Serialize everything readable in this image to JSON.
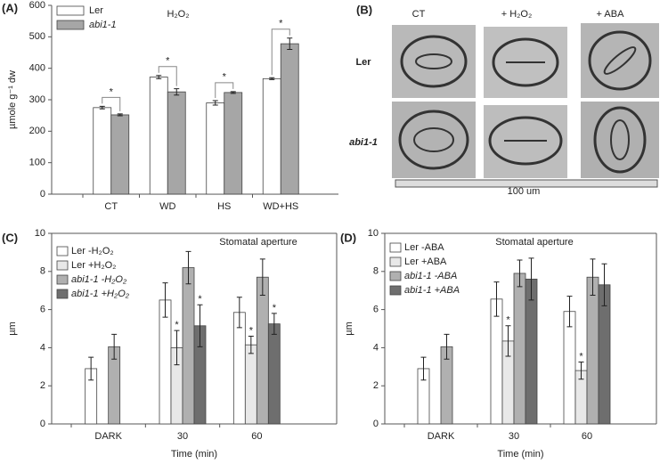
{
  "chart_data": [
    {
      "type": "bar",
      "panel_label": "(A)",
      "title": "H₂O₂",
      "y_label": "µmole g⁻¹ dw",
      "categories": [
        "CT",
        "WD",
        "HS",
        "WD+HS"
      ],
      "series": [
        {
          "name": "Ler",
          "color": "#ffffff",
          "values": [
            275,
            372,
            290,
            367
          ],
          "errors": [
            4,
            5,
            7,
            3
          ]
        },
        {
          "name": "abi1-1",
          "color": "#a6a6a6",
          "values": [
            252,
            325,
            323,
            478
          ],
          "errors": [
            3,
            10,
            3,
            18
          ],
          "significance": [
            "*",
            "*",
            "*",
            "*"
          ]
        }
      ],
      "ylim": [
        0,
        600
      ],
      "yticks": [
        0,
        100,
        200,
        300,
        400,
        500,
        600
      ],
      "legend": "upper left"
    },
    {
      "type": "bar",
      "panel_label": "(C)",
      "title": "Stomatal aperture",
      "x_label": "Time (min)",
      "y_label": "µm",
      "categories": [
        "DARK",
        "30",
        "60"
      ],
      "series": [
        {
          "name": "Ler -H₂O₂",
          "color": "#ffffff",
          "values": [
            2.9,
            6.5,
            5.85
          ],
          "errors": [
            0.6,
            0.9,
            0.8
          ]
        },
        {
          "name": "Ler +H₂O₂",
          "color": "#e8e8e8",
          "values": [
            null,
            4.0,
            4.15
          ],
          "errors": [
            null,
            0.9,
            0.45
          ],
          "significance": [
            null,
            "*",
            "*"
          ]
        },
        {
          "name": "abi1-1 -H₂O₂",
          "color": "#b0b0b0",
          "values": [
            4.05,
            8.2,
            7.7
          ],
          "errors": [
            0.65,
            0.85,
            0.95
          ]
        },
        {
          "name": "abi1-1 +H₂O₂",
          "color": "#6e6e6e",
          "values": [
            null,
            5.15,
            5.25
          ],
          "errors": [
            null,
            1.1,
            0.55
          ],
          "significance": [
            null,
            "*",
            "*"
          ]
        }
      ],
      "ylim": [
        0,
        10
      ],
      "yticks": [
        0,
        2,
        4,
        6,
        8,
        10
      ],
      "legend": "upper left"
    },
    {
      "type": "bar",
      "panel_label": "(D)",
      "title": "Stomatal aperture",
      "x_label": "Time (min)",
      "y_label": "µm",
      "categories": [
        "DARK",
        "30",
        "60"
      ],
      "series": [
        {
          "name": "Ler -ABA",
          "color": "#ffffff",
          "values": [
            2.9,
            6.55,
            5.9
          ],
          "errors": [
            0.6,
            0.9,
            0.8
          ]
        },
        {
          "name": "Ler +ABA",
          "color": "#e8e8e8",
          "values": [
            null,
            4.35,
            2.8
          ],
          "errors": [
            null,
            0.8,
            0.45
          ],
          "significance": [
            null,
            "*",
            "*"
          ]
        },
        {
          "name": "abi1-1 -ABA",
          "color": "#b0b0b0",
          "values": [
            4.05,
            7.9,
            7.7
          ],
          "errors": [
            0.65,
            0.7,
            0.95
          ]
        },
        {
          "name": "abi1-1 +ABA",
          "color": "#6e6e6e",
          "values": [
            null,
            7.6,
            7.3
          ],
          "errors": [
            null,
            1.1,
            1.1
          ]
        }
      ],
      "ylim": [
        0,
        10
      ],
      "yticks": [
        0,
        2,
        4,
        6,
        8,
        10
      ],
      "legend": "upper left"
    }
  ],
  "image_panel": {
    "panel_label": "(B)",
    "columns": [
      "CT",
      "+ H₂O₂",
      "+ ABA"
    ],
    "rows": [
      "Ler",
      "abi1-1"
    ],
    "scale_bar": "100 um"
  }
}
